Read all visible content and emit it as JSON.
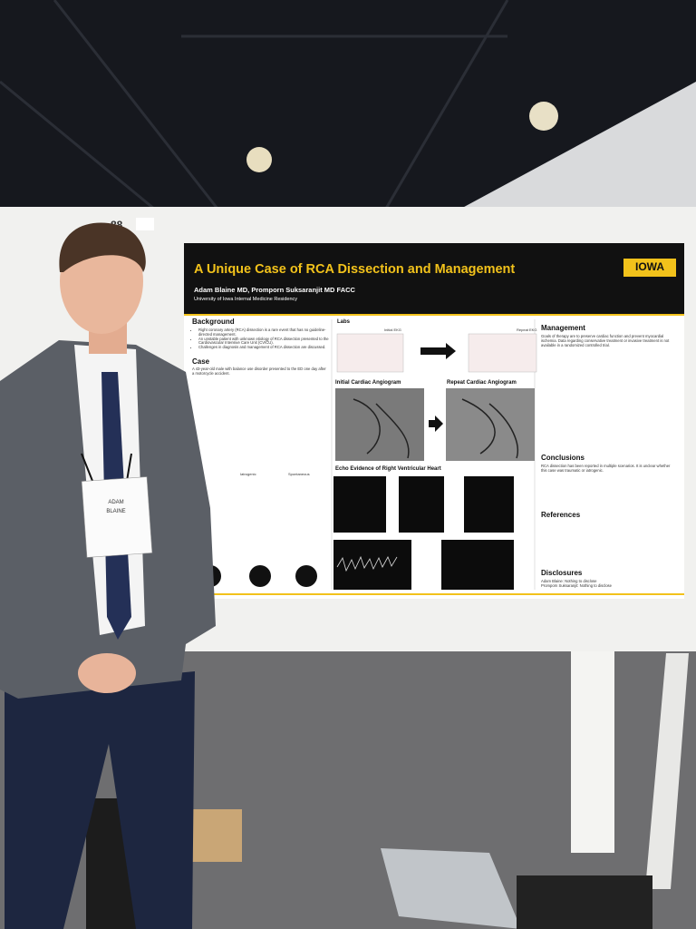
{
  "scene": {
    "board_number": "88"
  },
  "poster": {
    "title": "A Unique Case of RCA Dissection and Management",
    "logo": "IOWA",
    "authors": "Adam Blaine MD, Promporn Suksaranjit MD FACC",
    "affiliation": "University of Iowa Internal Medicine Residency",
    "background": {
      "heading": "Background",
      "bullets": [
        "Right coronary artery (RCA) dissection is a rare event that has no guideline-directed management.",
        "An unstable patient with unknown etiology of RCA dissection presented to the Cardiovascular Intensive Care Unit (CVICU).",
        "Challenges in diagnosis and management of RCA dissection are discussed."
      ]
    },
    "case": {
      "heading": "Case",
      "text": "A 43-year-old male with balance use disorder presented to the ED one day after a motorcycle accident."
    },
    "types": {
      "iatrogenic": "Iatrogenic",
      "spontaneous": "Spontaneous"
    },
    "labs": {
      "heading": "Labs",
      "initial": "Initial EKG",
      "repeat": "Repeat EKG"
    },
    "angiogram": {
      "initial": "Initial Cardiac Angiogram",
      "repeat": "Repeat Cardiac Angiogram"
    },
    "echo": {
      "heading": "Echo Evidence of Right Ventricular Heart"
    },
    "management": {
      "heading": "Management",
      "text": "Goals of therapy are to preserve cardiac function and prevent myocardial ischemia. Data regarding conservative treatment or invasive treatment is not available in a randomized controlled trial."
    },
    "conclusions": {
      "heading": "Conclusions",
      "text": "RCA dissection has been reported in multiple scenarios. It is unclear whether this case was traumatic or iatrogenic."
    },
    "references": {
      "heading": "References"
    },
    "disclosures": {
      "heading": "Disclosures",
      "lines": [
        "Adam Blaine: Nothing to disclose",
        "Promporn Suksaranjit: Nothing to disclose"
      ]
    }
  },
  "badge": {
    "first_name": "ADAM",
    "last_name": "BLAINE"
  }
}
